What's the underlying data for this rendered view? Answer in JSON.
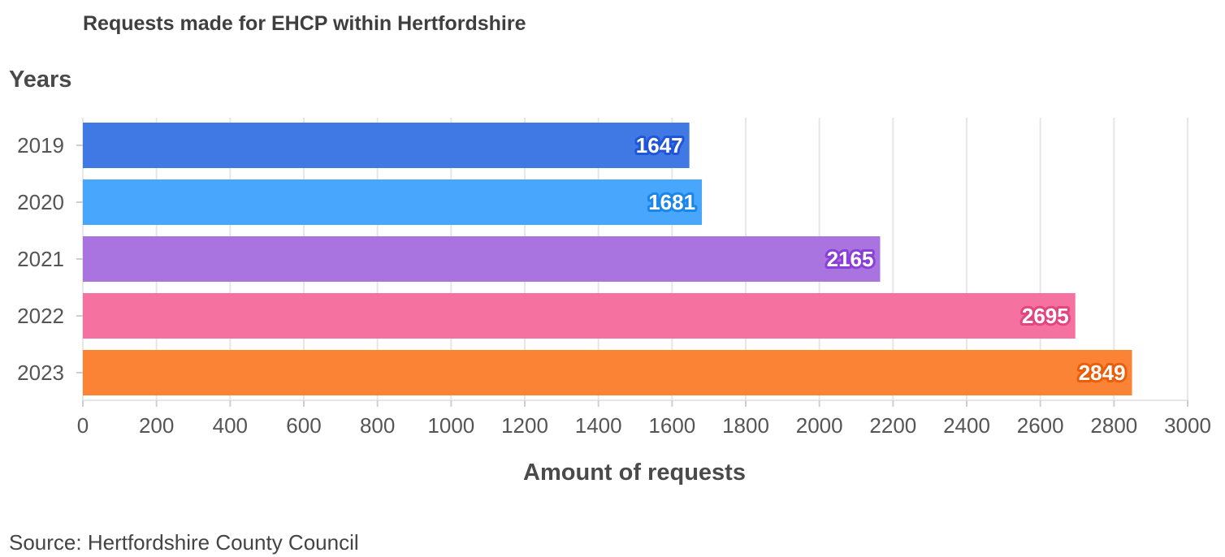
{
  "chart_data": {
    "type": "bar",
    "orientation": "horizontal",
    "title": "Requests made for EHCP within Hertfordshire",
    "ylabel": "Years",
    "xlabel": "Amount of requests",
    "categories": [
      "2019",
      "2020",
      "2021",
      "2022",
      "2023"
    ],
    "values": [
      1647,
      1681,
      2165,
      2695,
      2849
    ],
    "data_labels": [
      "1647",
      "1681",
      "2165",
      "2695",
      "2849"
    ],
    "bar_colors": [
      "#4079e3",
      "#48a7fd",
      "#a974e0",
      "#f471a0",
      "#fb8335"
    ],
    "label_outline_colors": [
      "#1f55d6",
      "#1b85e8",
      "#8a3fd8",
      "#e3457f",
      "#ea5e0a"
    ],
    "xlim": [
      0,
      3000
    ],
    "xticks": [
      0,
      200,
      400,
      600,
      800,
      1000,
      1200,
      1400,
      1600,
      1800,
      2000,
      2200,
      2400,
      2600,
      2800,
      3000
    ],
    "xtick_labels": [
      "0",
      "200",
      "400",
      "600",
      "800",
      "1000",
      "1200",
      "1400",
      "1600",
      "1800",
      "2000",
      "2200",
      "2400",
      "2600",
      "2800",
      "3000"
    ],
    "grid": true
  },
  "source": {
    "text": "Source: Hertfordshire County Council"
  }
}
